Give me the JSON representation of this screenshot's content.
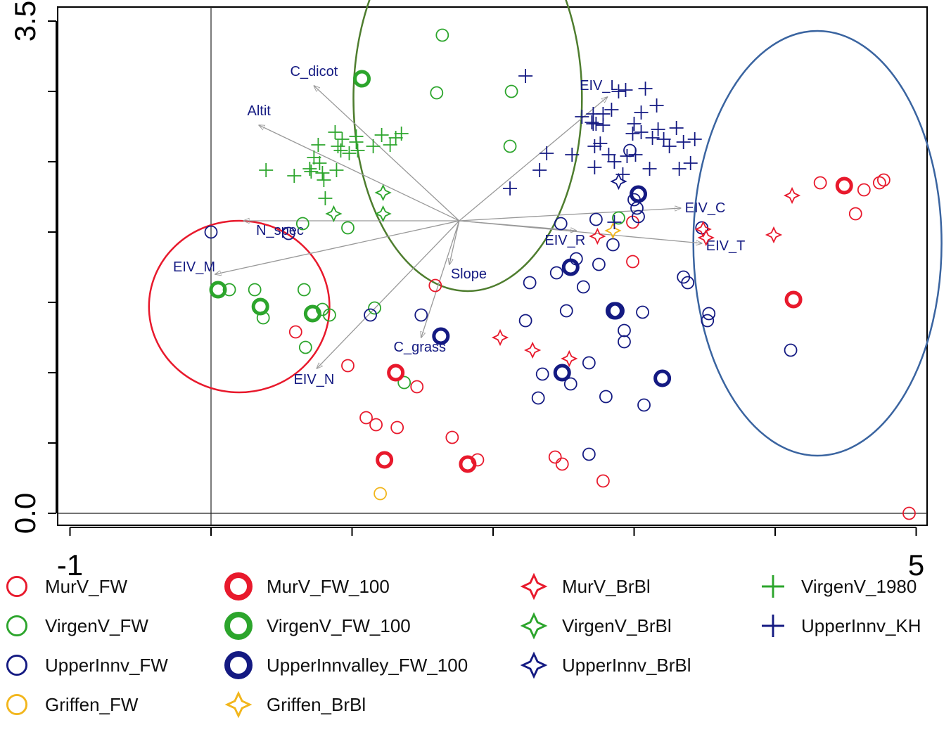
{
  "chart_data": {
    "type": "scatter",
    "title": "",
    "xlabel": "",
    "ylabel": "",
    "xlim": [
      -1,
      5
    ],
    "ylim": [
      0.0,
      3.5
    ],
    "x_tick_labels": [
      "-1",
      "5"
    ],
    "y_tick_labels": [
      "0.0",
      "3.5"
    ],
    "x_ticks": [
      -1,
      0,
      1,
      2,
      3,
      4,
      5
    ],
    "y_ticks": [
      0,
      0.5,
      1,
      1.5,
      2,
      2.5,
      3,
      3.5
    ],
    "grid": false,
    "colors": {
      "MurV": "#e8192c",
      "VirgenV": "#2ca52c",
      "UpperInnv": "#141a82",
      "Griffen": "#f2b61c",
      "arrow": "#999999",
      "arrow_label": "#141a82",
      "ellipse_green": "#4e7d2e",
      "ellipse_red": "#e8192c",
      "ellipse_blue": "#3a64a0"
    },
    "series": [
      {
        "name": "MurV_FW",
        "marker": "circle",
        "color": "#e8192c",
        "points": [
          [
            0.6,
            1.29
          ],
          [
            0.97,
            1.05
          ],
          [
            1.1,
            0.68
          ],
          [
            1.17,
            0.63
          ],
          [
            1.32,
            0.61
          ],
          [
            1.46,
            0.9
          ],
          [
            1.59,
            1.62
          ],
          [
            1.71,
            0.54
          ],
          [
            1.89,
            0.38
          ],
          [
            2.44,
            0.4
          ],
          [
            2.49,
            0.35
          ],
          [
            2.78,
            0.23
          ],
          [
            2.99,
            1.79
          ],
          [
            2.99,
            2.07
          ],
          [
            4.32,
            2.35
          ],
          [
            4.57,
            2.13
          ],
          [
            4.63,
            2.3
          ],
          [
            4.74,
            2.35
          ],
          [
            4.77,
            2.37
          ],
          [
            4.95,
            0.0
          ]
        ]
      },
      {
        "name": "VirgenV_FW",
        "marker": "circle",
        "color": "#2ca52c",
        "points": [
          [
            0.13,
            1.59
          ],
          [
            0.31,
            1.59
          ],
          [
            0.37,
            1.39
          ],
          [
            0.65,
            2.06
          ],
          [
            0.66,
            1.59
          ],
          [
            0.67,
            1.18
          ],
          [
            0.79,
            1.45
          ],
          [
            0.84,
            1.41
          ],
          [
            0.97,
            2.03
          ],
          [
            1.16,
            1.46
          ],
          [
            1.37,
            0.93
          ],
          [
            1.64,
            3.4
          ],
          [
            1.6,
            2.99
          ],
          [
            2.89,
            2.1
          ],
          [
            2.13,
            3.0
          ],
          [
            2.12,
            2.61
          ]
        ]
      },
      {
        "name": "UpperInnv_FW",
        "marker": "circle",
        "color": "#141a82",
        "points": [
          [
            0.0,
            2.0
          ],
          [
            0.55,
            1.99
          ],
          [
            1.13,
            1.41
          ],
          [
            1.49,
            1.41
          ],
          [
            2.23,
            1.37
          ],
          [
            2.26,
            1.64
          ],
          [
            2.32,
            0.82
          ],
          [
            2.35,
            0.99
          ],
          [
            2.45,
            1.71
          ],
          [
            2.48,
            2.06
          ],
          [
            2.52,
            1.44
          ],
          [
            2.55,
            0.92
          ],
          [
            2.59,
            1.81
          ],
          [
            2.64,
            1.61
          ],
          [
            2.68,
            1.07
          ],
          [
            2.68,
            0.42
          ],
          [
            2.73,
            2.09
          ],
          [
            2.75,
            1.77
          ],
          [
            2.8,
            0.83
          ],
          [
            2.85,
            1.91
          ],
          [
            2.93,
            1.3
          ],
          [
            2.93,
            1.22
          ],
          [
            2.97,
            2.58
          ],
          [
            3.0,
            2.23
          ],
          [
            3.02,
            2.17
          ],
          [
            3.03,
            2.11
          ],
          [
            3.06,
            1.43
          ],
          [
            3.07,
            0.77
          ],
          [
            3.35,
            1.68
          ],
          [
            3.38,
            1.64
          ],
          [
            3.48,
            2.03
          ],
          [
            3.52,
            1.37
          ],
          [
            3.53,
            1.42
          ],
          [
            4.11,
            1.16
          ]
        ]
      },
      {
        "name": "Griffen_FW",
        "marker": "circle",
        "color": "#f2b61c",
        "points": [
          [
            1.2,
            0.14
          ]
        ]
      },
      {
        "name": "MurV_FW_100",
        "marker": "circle-bold",
        "color": "#e8192c",
        "points": [
          [
            1.31,
            1.0
          ],
          [
            1.23,
            0.38
          ],
          [
            1.82,
            0.35
          ],
          [
            4.49,
            2.33
          ],
          [
            4.13,
            1.52
          ]
        ]
      },
      {
        "name": "VirgenV_FW_100",
        "marker": "circle-bold",
        "color": "#2ca52c",
        "points": [
          [
            0.05,
            1.59
          ],
          [
            0.35,
            1.47
          ],
          [
            0.72,
            1.42
          ],
          [
            1.07,
            3.09
          ]
        ]
      },
      {
        "name": "UpperInnvalley_FW_100",
        "marker": "circle-bold",
        "color": "#141a82",
        "points": [
          [
            1.63,
            1.26
          ],
          [
            2.49,
            1.0
          ],
          [
            2.55,
            1.75
          ],
          [
            2.86,
            1.44
          ],
          [
            2.87,
            1.44
          ],
          [
            3.03,
            2.27
          ],
          [
            3.2,
            0.96
          ]
        ]
      },
      {
        "name": "MurV_BrBl",
        "marker": "star4",
        "color": "#e8192c",
        "points": [
          [
            2.05,
            1.25
          ],
          [
            2.28,
            1.16
          ],
          [
            2.54,
            1.1
          ],
          [
            2.74,
            1.97
          ],
          [
            3.49,
            2.02
          ],
          [
            3.51,
            1.96
          ],
          [
            3.99,
            1.98
          ],
          [
            4.12,
            2.26
          ]
        ]
      },
      {
        "name": "VirgenV_BrBl",
        "marker": "star4",
        "color": "#2ca52c",
        "points": [
          [
            1.22,
            2.13
          ],
          [
            1.22,
            2.28
          ],
          [
            0.87,
            2.13
          ]
        ]
      },
      {
        "name": "UpperInnv_BrBl",
        "marker": "star4",
        "color": "#141a82",
        "points": [
          [
            2.89,
            2.36
          ]
        ]
      },
      {
        "name": "Griffen_BrBl",
        "marker": "star4",
        "color": "#f2b61c",
        "points": [
          [
            2.85,
            2.01
          ]
        ]
      },
      {
        "name": "VirgenV_1980",
        "marker": "plus",
        "color": "#2ca52c",
        "points": [
          [
            0.39,
            2.44
          ],
          [
            0.59,
            2.4
          ],
          [
            0.71,
            2.43
          ],
          [
            0.7,
            2.45
          ],
          [
            0.73,
            2.53
          ],
          [
            0.76,
            2.62
          ],
          [
            0.77,
            2.49
          ],
          [
            0.79,
            2.42
          ],
          [
            0.8,
            2.37
          ],
          [
            0.81,
            2.24
          ],
          [
            0.88,
            2.71
          ],
          [
            0.89,
            2.44
          ],
          [
            0.9,
            2.61
          ],
          [
            0.92,
            2.58
          ],
          [
            0.93,
            2.66
          ],
          [
            0.98,
            2.56
          ],
          [
            1.03,
            2.64
          ],
          [
            1.03,
            2.68
          ],
          [
            1.04,
            2.58
          ],
          [
            1.15,
            2.61
          ],
          [
            1.21,
            2.69
          ],
          [
            1.27,
            2.62
          ],
          [
            1.31,
            2.67
          ],
          [
            1.35,
            2.7
          ]
        ]
      },
      {
        "name": "UpperInnv_KH",
        "marker": "plus",
        "color": "#141a82",
        "points": [
          [
            2.12,
            2.31
          ],
          [
            2.23,
            3.11
          ],
          [
            2.33,
            2.44
          ],
          [
            2.38,
            2.56
          ],
          [
            2.56,
            2.55
          ],
          [
            2.63,
            2.82
          ],
          [
            2.7,
            2.78
          ],
          [
            2.71,
            2.77
          ],
          [
            2.73,
            2.77
          ],
          [
            2.71,
            2.84
          ],
          [
            2.72,
            2.61
          ],
          [
            2.72,
            2.46
          ],
          [
            2.76,
            2.63
          ],
          [
            2.78,
            2.84
          ],
          [
            2.78,
            2.76
          ],
          [
            2.82,
            2.55
          ],
          [
            2.84,
            2.87
          ],
          [
            2.86,
            2.5
          ],
          [
            2.89,
            3.0
          ],
          [
            2.92,
            2.41
          ],
          [
            2.95,
            2.54
          ],
          [
            2.94,
            3.01
          ],
          [
            2.99,
            2.7
          ],
          [
            3.0,
            2.77
          ],
          [
            3.01,
            2.55
          ],
          [
            3.05,
            2.71
          ],
          [
            3.05,
            2.85
          ],
          [
            3.08,
            3.02
          ],
          [
            3.11,
            2.45
          ],
          [
            3.13,
            2.67
          ],
          [
            3.16,
            2.9
          ],
          [
            3.17,
            2.73
          ],
          [
            3.21,
            2.66
          ],
          [
            3.25,
            2.61
          ],
          [
            3.3,
            2.74
          ],
          [
            3.32,
            2.45
          ],
          [
            3.35,
            2.64
          ],
          [
            3.43,
            2.66
          ],
          [
            3.4,
            2.49
          ],
          [
            2.86,
            2.07
          ]
        ]
      }
    ],
    "arrows": [
      {
        "label": "C_dicot",
        "x": 0.73,
        "y": 3.04
      },
      {
        "label": "Altit",
        "x": 0.34,
        "y": 2.76
      },
      {
        "label": "N_spec",
        "x": 0.23,
        "y": 2.08
      },
      {
        "label": "EIV_M",
        "x": 0.03,
        "y": 1.7
      },
      {
        "label": "EIV_N",
        "x": 0.75,
        "y": 1.03
      },
      {
        "label": "C_grass",
        "x": 1.49,
        "y": 1.25
      },
      {
        "label": "Slope",
        "x": 1.69,
        "y": 1.77
      },
      {
        "label": "EIV_R",
        "x": 2.59,
        "y": 2.01
      },
      {
        "label": "EIV_L",
        "x": 2.81,
        "y": 2.96
      },
      {
        "label": "EIV_C",
        "x": 3.33,
        "y": 2.17
      },
      {
        "label": "EIV_T",
        "x": 3.48,
        "y": 1.92
      }
    ],
    "arrow_origin": [
      1.76,
      2.08
    ],
    "ellipses": [
      {
        "cx": 1.82,
        "cy": 2.95,
        "rx": 0.81,
        "ry": 1.37,
        "color": "#4e7d2e"
      },
      {
        "cx": 0.2,
        "cy": 1.47,
        "rx": 0.64,
        "ry": 0.61,
        "color": "#e8192c"
      },
      {
        "cx": 4.3,
        "cy": 1.92,
        "rx": 0.88,
        "ry": 1.51,
        "color": "#3a64a0"
      }
    ],
    "legend": [
      {
        "name": "MurV_FW",
        "marker": "circle",
        "color": "#e8192c"
      },
      {
        "name": "VirgenV_FW",
        "marker": "circle",
        "color": "#2ca52c"
      },
      {
        "name": "UpperInnv_FW",
        "marker": "circle",
        "color": "#141a82"
      },
      {
        "name": "Griffen_FW",
        "marker": "circle",
        "color": "#f2b61c"
      },
      {
        "name": "MurV_FW_100",
        "marker": "circle-bold",
        "color": "#e8192c"
      },
      {
        "name": "VirgenV_FW_100",
        "marker": "circle-bold",
        "color": "#2ca52c"
      },
      {
        "name": "UpperInnvalley_FW_100",
        "marker": "circle-bold",
        "color": "#141a82"
      },
      {
        "name": "Griffen_BrBl",
        "marker": "star4",
        "color": "#f2b61c"
      },
      {
        "name": "MurV_BrBl",
        "marker": "star4",
        "color": "#e8192c"
      },
      {
        "name": "VirgenV_BrBl",
        "marker": "star4",
        "color": "#2ca52c"
      },
      {
        "name": "UpperInnv_BrBl",
        "marker": "star4",
        "color": "#141a82"
      },
      {
        "name": "VirgenV_1980",
        "marker": "plus",
        "color": "#2ca52c"
      },
      {
        "name": "UpperInnv_KH",
        "marker": "plus",
        "color": "#141a82"
      }
    ],
    "legend_placement": "bottom"
  }
}
